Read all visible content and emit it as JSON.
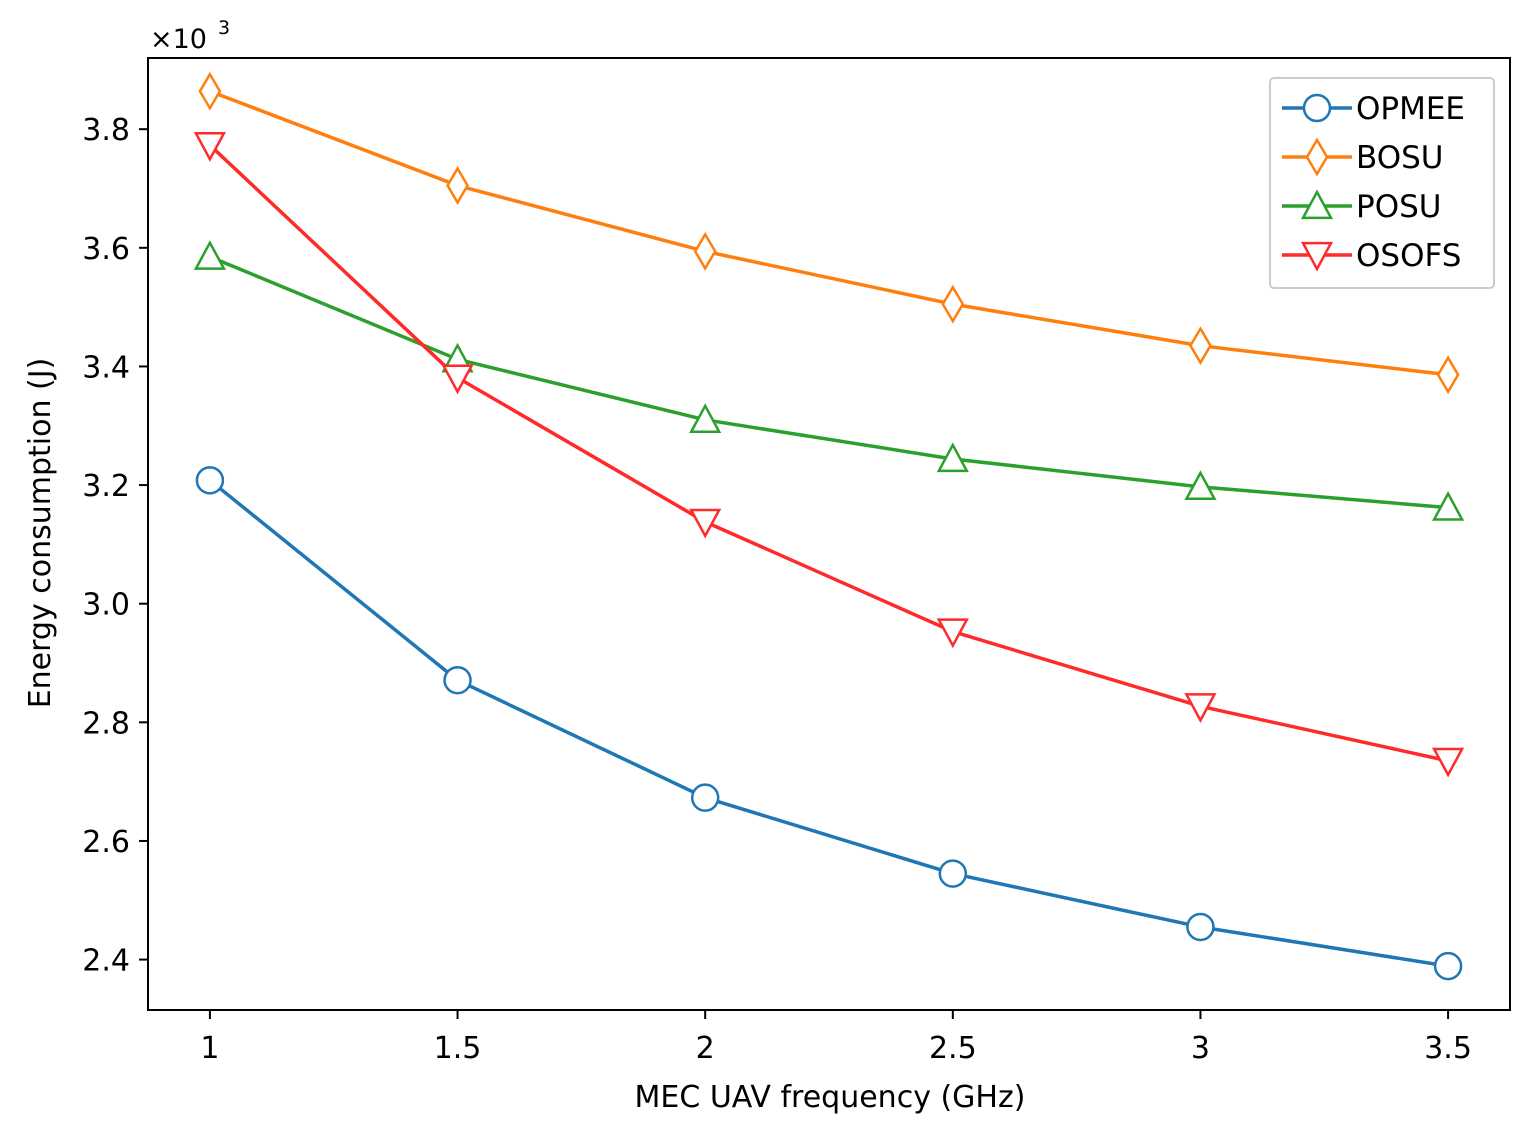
{
  "chart_data": {
    "type": "line",
    "title": "",
    "xlabel": "MEC UAV frequency (GHz)",
    "ylabel": "Energy consumption (J)",
    "y_scale_label": "×10",
    "y_scale_exponent": "3",
    "x": [
      1,
      1.5,
      2,
      2.5,
      3,
      3.5
    ],
    "x_tick_labels": [
      "1",
      "1.5",
      "2",
      "2.5",
      "3",
      "3.5"
    ],
    "y_ticks": [
      2.4,
      2.6,
      2.8,
      3.0,
      3.2,
      3.4,
      3.6,
      3.8
    ],
    "y_tick_labels": [
      "2.4",
      "2.6",
      "2.8",
      "3.0",
      "3.2",
      "3.4",
      "3.6",
      "3.8"
    ],
    "xlim": [
      0.875,
      3.625
    ],
    "ylim": [
      2.315,
      3.92
    ],
    "grid": false,
    "legend_position": "top-right",
    "series": [
      {
        "name": "OPMEE",
        "color": "#1f77b4",
        "marker": "circle",
        "values": [
          3.208,
          2.871,
          2.673,
          2.545,
          2.455,
          2.389
        ]
      },
      {
        "name": "BOSU",
        "color": "#ff7f0e",
        "marker": "diamond",
        "values": [
          3.864,
          3.705,
          3.594,
          3.505,
          3.435,
          3.386
        ]
      },
      {
        "name": "POSU",
        "color": "#2ca02c",
        "marker": "triangle-up",
        "values": [
          3.585,
          3.412,
          3.31,
          3.244,
          3.197,
          3.162
        ]
      },
      {
        "name": "OSOFS",
        "color": "#ff2a2a",
        "marker": "triangle-down",
        "values": [
          3.773,
          3.381,
          3.138,
          2.953,
          2.827,
          2.735
        ]
      }
    ]
  }
}
